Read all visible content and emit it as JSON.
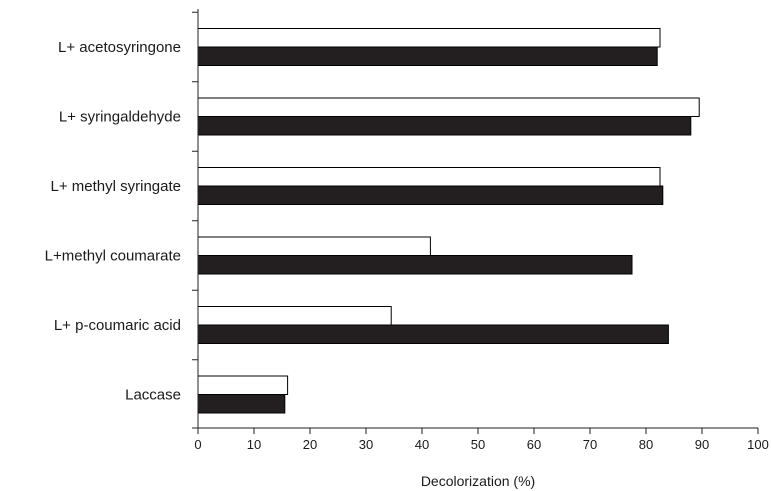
{
  "chart_data": {
    "type": "bar",
    "orientation": "horizontal",
    "categories": [
      "L+ acetosyringone",
      "L+ syringaldehyde",
      "L+ methyl syringate",
      "L+methyl coumarate",
      "L+ p-coumaric acid",
      "Laccase"
    ],
    "series": [
      {
        "fill": "#ffffff",
        "stroke": "#000000",
        "values": [
          82.5,
          89.5,
          82.5,
          41.5,
          34.5,
          16
        ]
      },
      {
        "fill": "#231f20",
        "stroke": "#000000",
        "values": [
          82,
          88,
          83,
          77.5,
          84,
          15.5
        ]
      }
    ],
    "xlabel": "Decolorization (%)",
    "xlim": [
      0,
      100
    ],
    "xticks": [
      "0",
      "10",
      "20",
      "30",
      "40",
      "50",
      "60",
      "70",
      "80",
      "90",
      "100"
    ],
    "grid": false,
    "legend": "none"
  }
}
